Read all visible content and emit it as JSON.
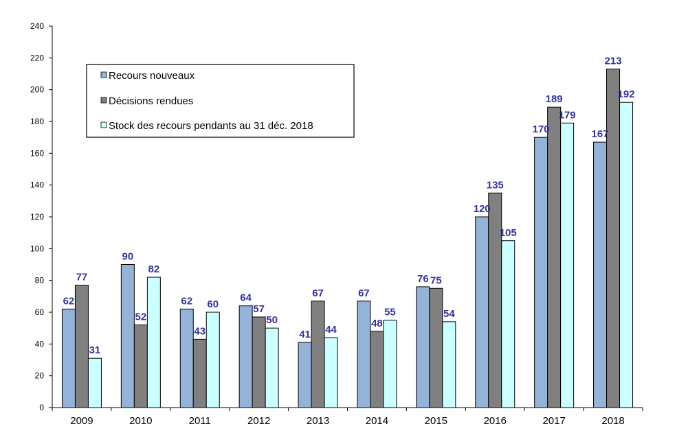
{
  "chart_data": {
    "type": "bar",
    "categories": [
      "2009",
      "2010",
      "2011",
      "2012",
      "2013",
      "2014",
      "2015",
      "2016",
      "2017",
      "2018"
    ],
    "series": [
      {
        "name": "Recours nouveaux",
        "color": "#95b3d7",
        "values": [
          62,
          90,
          62,
          64,
          41,
          67,
          76,
          120,
          170,
          167
        ]
      },
      {
        "name": "Décisions rendues",
        "color": "#808080",
        "values": [
          77,
          52,
          43,
          57,
          67,
          48,
          75,
          135,
          189,
          213
        ]
      },
      {
        "name": "Stock des recours pendants au 31 déc. 2018",
        "color": "#ccffff",
        "values": [
          31,
          82,
          60,
          50,
          44,
          55,
          54,
          105,
          179,
          192
        ]
      }
    ],
    "ylim": [
      0,
      240
    ],
    "ytick_step": 20,
    "yticks": [
      "0",
      "20",
      "40",
      "60",
      "80",
      "100",
      "120",
      "140",
      "160",
      "180",
      "200",
      "220",
      "240"
    ],
    "data_label_color": "#33339a",
    "grid": false,
    "legend_position": "top-left",
    "title": "",
    "xlabel": "",
    "ylabel": ""
  }
}
